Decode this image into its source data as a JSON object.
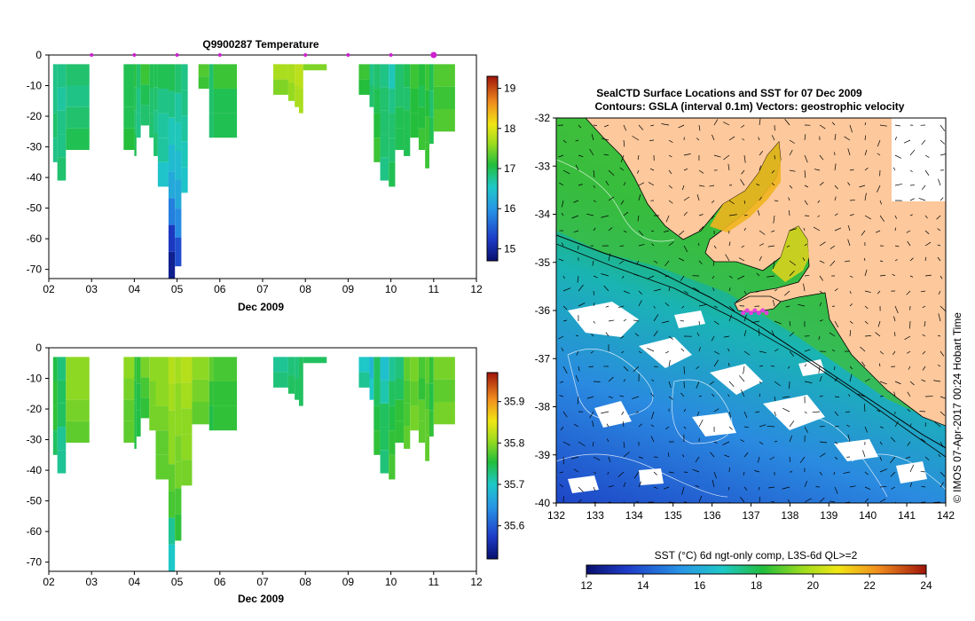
{
  "chart_data": [
    {
      "type": "heatmap",
      "title": "Q9900287  Temperature",
      "xlabel": "Dec 2009",
      "ylabel": "",
      "x_ticks": [
        "02",
        "03",
        "04",
        "05",
        "06",
        "07",
        "08",
        "09",
        "10",
        "11",
        "12"
      ],
      "y_ticks": [
        "0",
        "-10",
        "-20",
        "-30",
        "-40",
        "-50",
        "-60",
        "-70"
      ],
      "xlim": [
        2,
        12
      ],
      "ylim": [
        -73,
        0
      ],
      "colorbar_ticks": [
        "15",
        "16",
        "17",
        "18",
        "19"
      ],
      "colorbar_range": [
        14.7,
        19.3
      ],
      "profile_markers_day": [
        3,
        4,
        5,
        6,
        8,
        9,
        10,
        11
      ],
      "highlight_marker_day": 11,
      "profiles": [
        {
          "x0": 2.1,
          "x1": 2.2,
          "depth": 35,
          "v": [
            16.8,
            16.8,
            16.9,
            16.8
          ]
        },
        {
          "x0": 2.2,
          "x1": 2.4,
          "depth": 41,
          "v": [
            16.8,
            16.7,
            16.8,
            16.8,
            16.9
          ]
        },
        {
          "x0": 2.4,
          "x1": 2.95,
          "depth": 31,
          "v": [
            16.9,
            16.8,
            16.9,
            17.0
          ]
        },
        {
          "x0": 3.75,
          "x1": 4.0,
          "depth": 31,
          "v": [
            17.0,
            17.0,
            17.0,
            17.1
          ]
        },
        {
          "x0": 4.0,
          "x1": 4.05,
          "depth": 33,
          "v": [
            17.1,
            17.0,
            16.9,
            17.0
          ]
        },
        {
          "x0": 4.05,
          "x1": 4.15,
          "depth": 27,
          "v": [
            16.9,
            16.8,
            16.8
          ]
        },
        {
          "x0": 4.15,
          "x1": 4.35,
          "depth": 23,
          "v": [
            17.2,
            17.0,
            16.9
          ]
        },
        {
          "x0": 4.35,
          "x1": 4.45,
          "depth": 27,
          "v": [
            17.0,
            16.9,
            16.9
          ]
        },
        {
          "x0": 4.45,
          "x1": 4.55,
          "depth": 33,
          "v": [
            17.0,
            16.9,
            16.8,
            16.9
          ]
        },
        {
          "x0": 4.55,
          "x1": 4.8,
          "depth": 43,
          "v": [
            17.0,
            16.8,
            16.7,
            16.7,
            16.5
          ]
        },
        {
          "x0": 4.8,
          "x1": 4.95,
          "depth": 73,
          "v": [
            17.0,
            16.8,
            16.6,
            16.4,
            16.2,
            15.8,
            15.2,
            14.9
          ]
        },
        {
          "x0": 4.95,
          "x1": 5.1,
          "depth": 69,
          "v": [
            16.9,
            16.7,
            16.6,
            16.4,
            16.2,
            15.9,
            15.4
          ]
        },
        {
          "x0": 5.1,
          "x1": 5.25,
          "depth": 45,
          "v": [
            16.8,
            16.8,
            16.7,
            16.6,
            16.5
          ]
        },
        {
          "x0": 5.5,
          "x1": 5.75,
          "depth": 11,
          "v": [
            17.3,
            17.2
          ]
        },
        {
          "x0": 5.75,
          "x1": 5.85,
          "depth": 27,
          "v": [
            16.9,
            16.9,
            16.9
          ]
        },
        {
          "x0": 5.85,
          "x1": 6.4,
          "depth": 27,
          "v": [
            17.2,
            17.0,
            17.0
          ]
        },
        {
          "x0": 7.25,
          "x1": 7.6,
          "depth": 13,
          "v": [
            17.7,
            17.5
          ]
        },
        {
          "x0": 7.6,
          "x1": 7.75,
          "depth": 15,
          "v": [
            17.7,
            17.6
          ]
        },
        {
          "x0": 7.75,
          "x1": 7.85,
          "depth": 17,
          "v": [
            17.8,
            17.7
          ]
        },
        {
          "x0": 7.85,
          "x1": 7.95,
          "depth": 19,
          "v": [
            17.8,
            17.7
          ]
        },
        {
          "x0": 7.95,
          "x1": 8.5,
          "depth": 5,
          "v": [
            17.5
          ]
        },
        {
          "x0": 9.25,
          "x1": 9.5,
          "depth": 13,
          "v": [
            17.2,
            17.1
          ]
        },
        {
          "x0": 9.5,
          "x1": 9.6,
          "depth": 17,
          "v": [
            16.8,
            16.9
          ]
        },
        {
          "x0": 9.6,
          "x1": 9.75,
          "depth": 35,
          "v": [
            16.9,
            17.0,
            17.1,
            17.2
          ]
        },
        {
          "x0": 9.75,
          "x1": 9.95,
          "depth": 41,
          "v": [
            16.8,
            16.9,
            16.9,
            16.9,
            16.8
          ]
        },
        {
          "x0": 9.95,
          "x1": 10.1,
          "depth": 43,
          "v": [
            16.6,
            16.8,
            16.9,
            16.9,
            17.0
          ]
        },
        {
          "x0": 10.1,
          "x1": 10.3,
          "depth": 31,
          "v": [
            16.9,
            16.9,
            17.0,
            17.0
          ]
        },
        {
          "x0": 10.3,
          "x1": 10.45,
          "depth": 33,
          "v": [
            17.0,
            16.9,
            17.0,
            17.0
          ]
        },
        {
          "x0": 10.45,
          "x1": 10.65,
          "depth": 27,
          "v": [
            17.2,
            17.1,
            17.1
          ]
        },
        {
          "x0": 10.65,
          "x1": 10.8,
          "depth": 31,
          "v": [
            17.1,
            17.0,
            17.1,
            17.2
          ]
        },
        {
          "x0": 10.8,
          "x1": 10.9,
          "depth": 37,
          "v": [
            17.2,
            17.1,
            17.2,
            17.2
          ]
        },
        {
          "x0": 10.9,
          "x1": 11.0,
          "depth": 29,
          "v": [
            17.0,
            16.9,
            17.0
          ]
        },
        {
          "x0": 11.0,
          "x1": 11.5,
          "depth": 25,
          "v": [
            17.3,
            17.2,
            17.3
          ]
        }
      ]
    },
    {
      "type": "heatmap",
      "title": "",
      "xlabel": "Dec 2009",
      "ylabel": "",
      "x_ticks": [
        "02",
        "03",
        "04",
        "05",
        "06",
        "07",
        "08",
        "09",
        "10",
        "11",
        "12"
      ],
      "y_ticks": [
        "0",
        "-10",
        "-20",
        "-30",
        "-40",
        "-50",
        "-60",
        "-70"
      ],
      "xlim": [
        2,
        12
      ],
      "ylim": [
        -73,
        0
      ],
      "colorbar_ticks": [
        "35.6",
        "35.7",
        "35.8",
        "35.9"
      ],
      "colorbar_range": [
        35.52,
        35.97
      ],
      "profiles": [
        {
          "x0": 2.1,
          "x1": 2.2,
          "depth": 35,
          "v": [
            35.75,
            35.76,
            35.76,
            35.74
          ]
        },
        {
          "x0": 2.2,
          "x1": 2.4,
          "depth": 41,
          "v": [
            35.73,
            35.74,
            35.74,
            35.72,
            35.72
          ]
        },
        {
          "x0": 2.4,
          "x1": 2.95,
          "depth": 31,
          "v": [
            35.8,
            35.8,
            35.79,
            35.78
          ]
        },
        {
          "x0": 3.75,
          "x1": 4.0,
          "depth": 31,
          "v": [
            35.8,
            35.79,
            35.78,
            35.78
          ]
        },
        {
          "x0": 4.0,
          "x1": 4.05,
          "depth": 33,
          "v": [
            35.76,
            35.75,
            35.75,
            35.75
          ]
        },
        {
          "x0": 4.05,
          "x1": 4.15,
          "depth": 29,
          "v": [
            35.76,
            35.75,
            35.75
          ]
        },
        {
          "x0": 4.15,
          "x1": 4.35,
          "depth": 23,
          "v": [
            35.79,
            35.77,
            35.76
          ]
        },
        {
          "x0": 4.35,
          "x1": 4.5,
          "depth": 27,
          "v": [
            35.8,
            35.79,
            35.79
          ]
        },
        {
          "x0": 4.5,
          "x1": 4.8,
          "depth": 43,
          "v": [
            35.8,
            35.8,
            35.79,
            35.78,
            35.78
          ]
        },
        {
          "x0": 4.8,
          "x1": 4.95,
          "depth": 73,
          "v": [
            35.82,
            35.81,
            35.8,
            35.8,
            35.78,
            35.77,
            35.72,
            35.7
          ]
        },
        {
          "x0": 4.95,
          "x1": 5.1,
          "depth": 63,
          "v": [
            35.81,
            35.8,
            35.8,
            35.79,
            35.79,
            35.77,
            35.76
          ]
        },
        {
          "x0": 5.1,
          "x1": 5.35,
          "depth": 45,
          "v": [
            35.82,
            35.81,
            35.8,
            35.8,
            35.79
          ]
        },
        {
          "x0": 5.35,
          "x1": 5.75,
          "depth": 25,
          "v": [
            35.8,
            35.79,
            35.78
          ]
        },
        {
          "x0": 5.75,
          "x1": 5.85,
          "depth": 27,
          "v": [
            35.78,
            35.76,
            35.75
          ]
        },
        {
          "x0": 5.85,
          "x1": 6.4,
          "depth": 27,
          "v": [
            35.77,
            35.76,
            35.76
          ]
        },
        {
          "x0": 7.25,
          "x1": 7.6,
          "depth": 13,
          "v": [
            35.72,
            35.73
          ]
        },
        {
          "x0": 7.6,
          "x1": 7.75,
          "depth": 15,
          "v": [
            35.73,
            35.74
          ]
        },
        {
          "x0": 7.75,
          "x1": 7.85,
          "depth": 17,
          "v": [
            35.73,
            35.74
          ]
        },
        {
          "x0": 7.85,
          "x1": 7.95,
          "depth": 19,
          "v": [
            35.74,
            35.74
          ]
        },
        {
          "x0": 7.95,
          "x1": 8.5,
          "depth": 5,
          "v": [
            35.74
          ]
        },
        {
          "x0": 9.25,
          "x1": 9.5,
          "depth": 13,
          "v": [
            35.7,
            35.72
          ]
        },
        {
          "x0": 9.5,
          "x1": 9.6,
          "depth": 17,
          "v": [
            35.68,
            35.7
          ]
        },
        {
          "x0": 9.6,
          "x1": 9.75,
          "depth": 35,
          "v": [
            35.74,
            35.74,
            35.75,
            35.76
          ]
        },
        {
          "x0": 9.75,
          "x1": 9.95,
          "depth": 41,
          "v": [
            35.69,
            35.71,
            35.74,
            35.74,
            35.73
          ]
        },
        {
          "x0": 9.95,
          "x1": 10.1,
          "depth": 43,
          "v": [
            35.72,
            35.74,
            35.75,
            35.76,
            35.77
          ]
        },
        {
          "x0": 10.1,
          "x1": 10.3,
          "depth": 31,
          "v": [
            35.73,
            35.74,
            35.76,
            35.76
          ]
        },
        {
          "x0": 10.3,
          "x1": 10.45,
          "depth": 33,
          "v": [
            35.78,
            35.77,
            35.77,
            35.78
          ]
        },
        {
          "x0": 10.45,
          "x1": 10.65,
          "depth": 27,
          "v": [
            35.79,
            35.78,
            35.79
          ]
        },
        {
          "x0": 10.65,
          "x1": 10.8,
          "depth": 31,
          "v": [
            35.77,
            35.76,
            35.78,
            35.78
          ]
        },
        {
          "x0": 10.8,
          "x1": 10.9,
          "depth": 37,
          "v": [
            35.78,
            35.77,
            35.78,
            35.78
          ]
        },
        {
          "x0": 10.9,
          "x1": 11.0,
          "depth": 29,
          "v": [
            35.76,
            35.75,
            35.76
          ]
        },
        {
          "x0": 11.0,
          "x1": 11.5,
          "depth": 25,
          "v": [
            35.79,
            35.78,
            35.79
          ]
        }
      ]
    },
    {
      "type": "heatmap",
      "title": "SealCTD Surface Locations and SST for 07 Dec 2009",
      "subtitle": "Contours: GSLA (interval 0.1m) Vectors: geostrophic velocity",
      "x_ticks": [
        "132",
        "133",
        "134",
        "135",
        "136",
        "137",
        "138",
        "139",
        "140",
        "141",
        "142"
      ],
      "y_ticks": [
        "-32",
        "-33",
        "-34",
        "-35",
        "-36",
        "-37",
        "-38",
        "-39",
        "-40"
      ],
      "xlim": [
        132,
        142
      ],
      "ylim": [
        -40,
        -32
      ],
      "colorbar_label": "SST (°C) 6d ngt-only comp, L3S-6d QL>=2",
      "colorbar_ticks": [
        "12",
        "14",
        "16",
        "18",
        "20",
        "22",
        "24"
      ],
      "colorbar_range": [
        12,
        24
      ],
      "credit": "© IMOS 07-Apr-2017 00:24 Hobart Time",
      "seal_locations": [
        [
          136.8,
          -36.05
        ],
        [
          136.9,
          -36.0
        ],
        [
          137.0,
          -36.05
        ],
        [
          137.1,
          -36.0
        ],
        [
          137.2,
          -36.05
        ],
        [
          137.3,
          -36.0
        ],
        [
          137.4,
          -36.05
        ]
      ]
    }
  ]
}
